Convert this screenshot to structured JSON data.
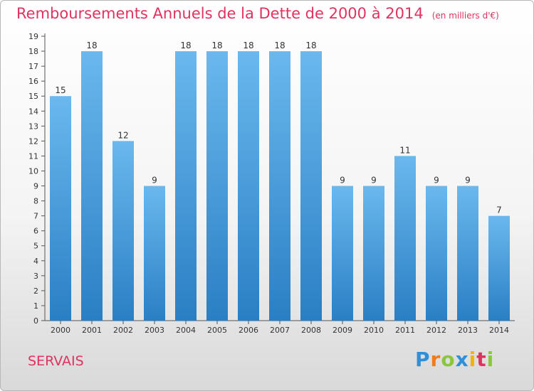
{
  "title": "Remboursements Annuels de la Dette de 2000 à 2014",
  "unit_note": "(en milliers d'€)",
  "commune": "SERVAIS",
  "brand": {
    "letters": [
      "P",
      "r",
      "o",
      "x",
      "i",
      "t",
      "i"
    ],
    "colors": [
      "#2f8fd8",
      "#f07d1a",
      "#8cc63e",
      "#2f8fd8",
      "#f0b400",
      "#e0325f",
      "#8cc63e"
    ]
  },
  "colors": {
    "bar_top": "#6ab8ee",
    "bar_bottom": "#2a7fc4",
    "title": "#e0325f"
  },
  "chart_data": {
    "type": "bar",
    "categories": [
      "2000",
      "2001",
      "2002",
      "2003",
      "2004",
      "2005",
      "2006",
      "2007",
      "2008",
      "2009",
      "2010",
      "2011",
      "2012",
      "2013",
      "2014"
    ],
    "values": [
      15,
      18,
      12,
      9,
      18,
      18,
      18,
      18,
      18,
      9,
      9,
      11,
      9,
      9,
      7
    ],
    "ylim": [
      0,
      19
    ],
    "yticks": [
      0,
      1,
      2,
      3,
      4,
      5,
      6,
      7,
      8,
      9,
      10,
      11,
      12,
      13,
      14,
      15,
      16,
      17,
      18,
      19
    ],
    "grid": false,
    "legend": "none"
  }
}
